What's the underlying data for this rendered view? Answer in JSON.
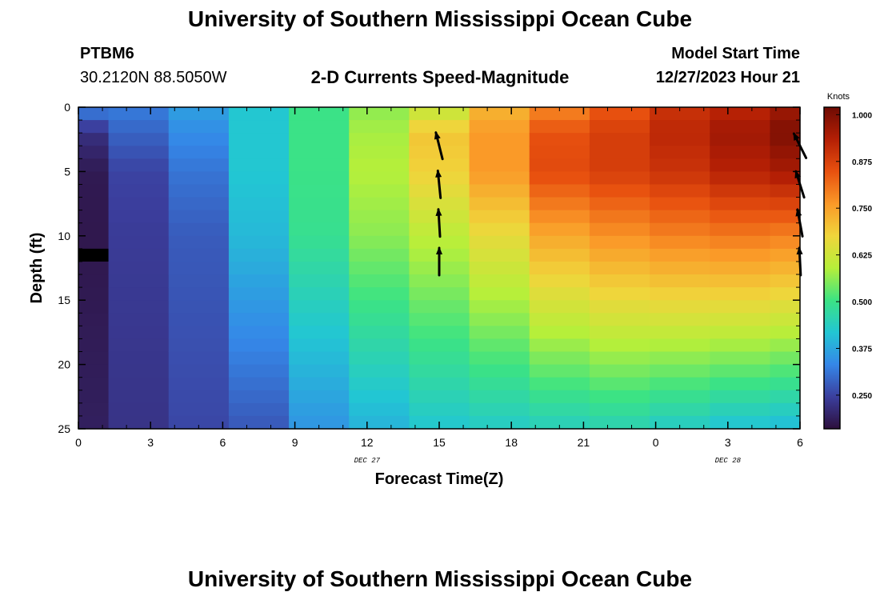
{
  "header": {
    "title": "University of Southern Mississippi Ocean Cube",
    "station_id": "PTBM6",
    "coords": "30.2120N  88.5050W",
    "plot_title": "2-D Currents Speed-Magnitude",
    "start_label": "Model Start Time",
    "start_value": "12/27/2023 Hour 21"
  },
  "footer": {
    "title": "University of Southern Mississippi Ocean Cube"
  },
  "chart_data": {
    "type": "heatmap",
    "title": "2-D Currents Speed-Magnitude",
    "xlabel": "Forecast Time(Z)",
    "ylabel": "Depth (ft)",
    "x_ticks": [
      "0",
      "3",
      "6",
      "9",
      "12",
      "15",
      "18",
      "21",
      "0",
      "3",
      "6"
    ],
    "x_tick_hours": [
      0,
      3,
      6,
      9,
      12,
      15,
      18,
      21,
      24,
      27,
      30
    ],
    "x_range": [
      0,
      30
    ],
    "y_ticks": [
      "0",
      "5",
      "10",
      "15",
      "20",
      "25"
    ],
    "y_tick_values": [
      0,
      5,
      10,
      15,
      20,
      25
    ],
    "y_range": [
      0,
      25
    ],
    "date_labels": [
      {
        "text": "DEC 27",
        "hour": 12
      },
      {
        "text": "DEC 28",
        "hour": 27
      }
    ],
    "colorbar": {
      "unit": "Knots",
      "range": [
        0.16,
        1.02
      ],
      "ticks": [
        "1.000",
        "0.875",
        "0.750",
        "0.625",
        "0.500",
        "0.375",
        "0.250"
      ],
      "tick_values": [
        1.0,
        0.875,
        0.75,
        0.625,
        0.5,
        0.375,
        0.25
      ],
      "stops": [
        "#2d0f3c",
        "#3b3f9e",
        "#3587e8",
        "#22c6d3",
        "#3ce383",
        "#b6ef3a",
        "#f0d53b",
        "#fa9928",
        "#e8510f",
        "#b41f05",
        "#6e0b03"
      ]
    },
    "time_columns_hours": [
      0,
      2.5,
      5,
      7.5,
      10,
      12.5,
      15,
      17.5,
      20,
      22.5,
      25,
      27.5,
      30
    ],
    "depth_rows_ft": 25,
    "column_profiles": [
      {
        "surface": 0.33,
        "p2": 0.22,
        "p5": 0.18,
        "p10": 0.175,
        "bottom": 0.19
      },
      {
        "surface": 0.32,
        "p2": 0.29,
        "p5": 0.25,
        "p10": 0.24,
        "bottom": 0.225
      },
      {
        "surface": 0.365,
        "p2": 0.34,
        "p5": 0.31,
        "p10": 0.28,
        "bottom": 0.255
      },
      {
        "surface": 0.42,
        "p2": 0.42,
        "p5": 0.42,
        "p10": 0.4,
        "bottom": 0.275
      },
      {
        "surface": 0.5,
        "p2": 0.5,
        "p5": 0.5,
        "p10": 0.49,
        "bottom": 0.35
      },
      {
        "surface": 0.56,
        "p2": 0.58,
        "p5": 0.59,
        "p10": 0.56,
        "bottom": 0.39
      },
      {
        "surface": 0.6,
        "p2": 0.7,
        "p5": 0.68,
        "p10": 0.6,
        "bottom": 0.42
      },
      {
        "surface": 0.72,
        "p2": 0.76,
        "p5": 0.76,
        "p10": 0.66,
        "bottom": 0.43
      },
      {
        "surface": 0.78,
        "p2": 0.85,
        "p5": 0.86,
        "p10": 0.74,
        "bottom": 0.44
      },
      {
        "surface": 0.84,
        "p2": 0.88,
        "p5": 0.88,
        "p10": 0.77,
        "bottom": 0.45
      },
      {
        "surface": 0.9,
        "p2": 0.92,
        "p5": 0.9,
        "p10": 0.79,
        "bottom": 0.43
      },
      {
        "surface": 0.92,
        "p2": 0.96,
        "p5": 0.93,
        "p10": 0.8,
        "bottom": 0.41
      },
      {
        "surface": 0.96,
        "p2": 1.0,
        "p5": 0.95,
        "p10": 0.79,
        "bottom": 0.4
      }
    ],
    "missing_cells": [
      {
        "hour": 0,
        "depth_ft": 11
      }
    ],
    "vectors": [
      {
        "hour": 15,
        "depth_ft": 3,
        "dx": -0.25,
        "dy": -1
      },
      {
        "hour": 15,
        "depth_ft": 6,
        "dx": -0.1,
        "dy": -1
      },
      {
        "hour": 15,
        "depth_ft": 9,
        "dx": -0.06,
        "dy": -1
      },
      {
        "hour": 15,
        "depth_ft": 12,
        "dx": 0,
        "dy": -1
      },
      {
        "hour": 30,
        "depth_ft": 3,
        "dx": -0.45,
        "dy": -0.9
      },
      {
        "hour": 30,
        "depth_ft": 6,
        "dx": -0.3,
        "dy": -0.95
      },
      {
        "hour": 30,
        "depth_ft": 9,
        "dx": -0.18,
        "dy": -0.98
      },
      {
        "hour": 30,
        "depth_ft": 12,
        "dx": -0.05,
        "dy": -1
      }
    ]
  }
}
